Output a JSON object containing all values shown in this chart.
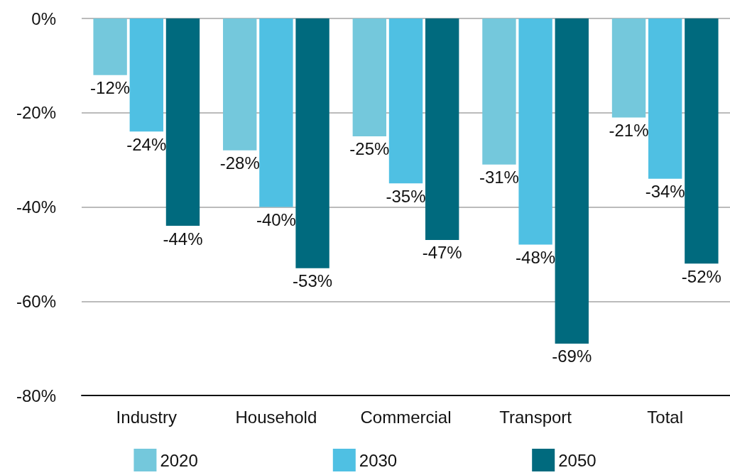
{
  "chart_data": {
    "type": "bar",
    "categories": [
      "Industry",
      "Household",
      "Commercial",
      "Transport",
      "Total"
    ],
    "series": [
      {
        "name": "2020",
        "color": "#74c8dc",
        "values": [
          -12,
          -28,
          -25,
          -31,
          -21
        ],
        "value_labels": [
          "-12%",
          "-28%",
          "-25%",
          "-31%",
          "-21%"
        ]
      },
      {
        "name": "2030",
        "color": "#4fc0e3",
        "values": [
          -24,
          -40,
          -35,
          -48,
          -34
        ],
        "value_labels": [
          "-24%",
          "-40%",
          "-35%",
          "-48%",
          "-34%"
        ]
      },
      {
        "name": "2050",
        "color": "#006a7e",
        "values": [
          -44,
          -53,
          -47,
          -69,
          -52
        ],
        "value_labels": [
          "-44%",
          "-53%",
          "-47%",
          "-69%",
          "-52%"
        ]
      }
    ],
    "ylim": [
      -80,
      0
    ],
    "yticks": [
      {
        "value": -80,
        "label": "-80%"
      },
      {
        "value": -60,
        "label": "-60%"
      },
      {
        "value": -40,
        "label": "-40%"
      },
      {
        "value": -20,
        "label": "-20%"
      },
      {
        "value": 0,
        "label": "0%"
      }
    ],
    "grid": "y",
    "legend": "bottom"
  }
}
